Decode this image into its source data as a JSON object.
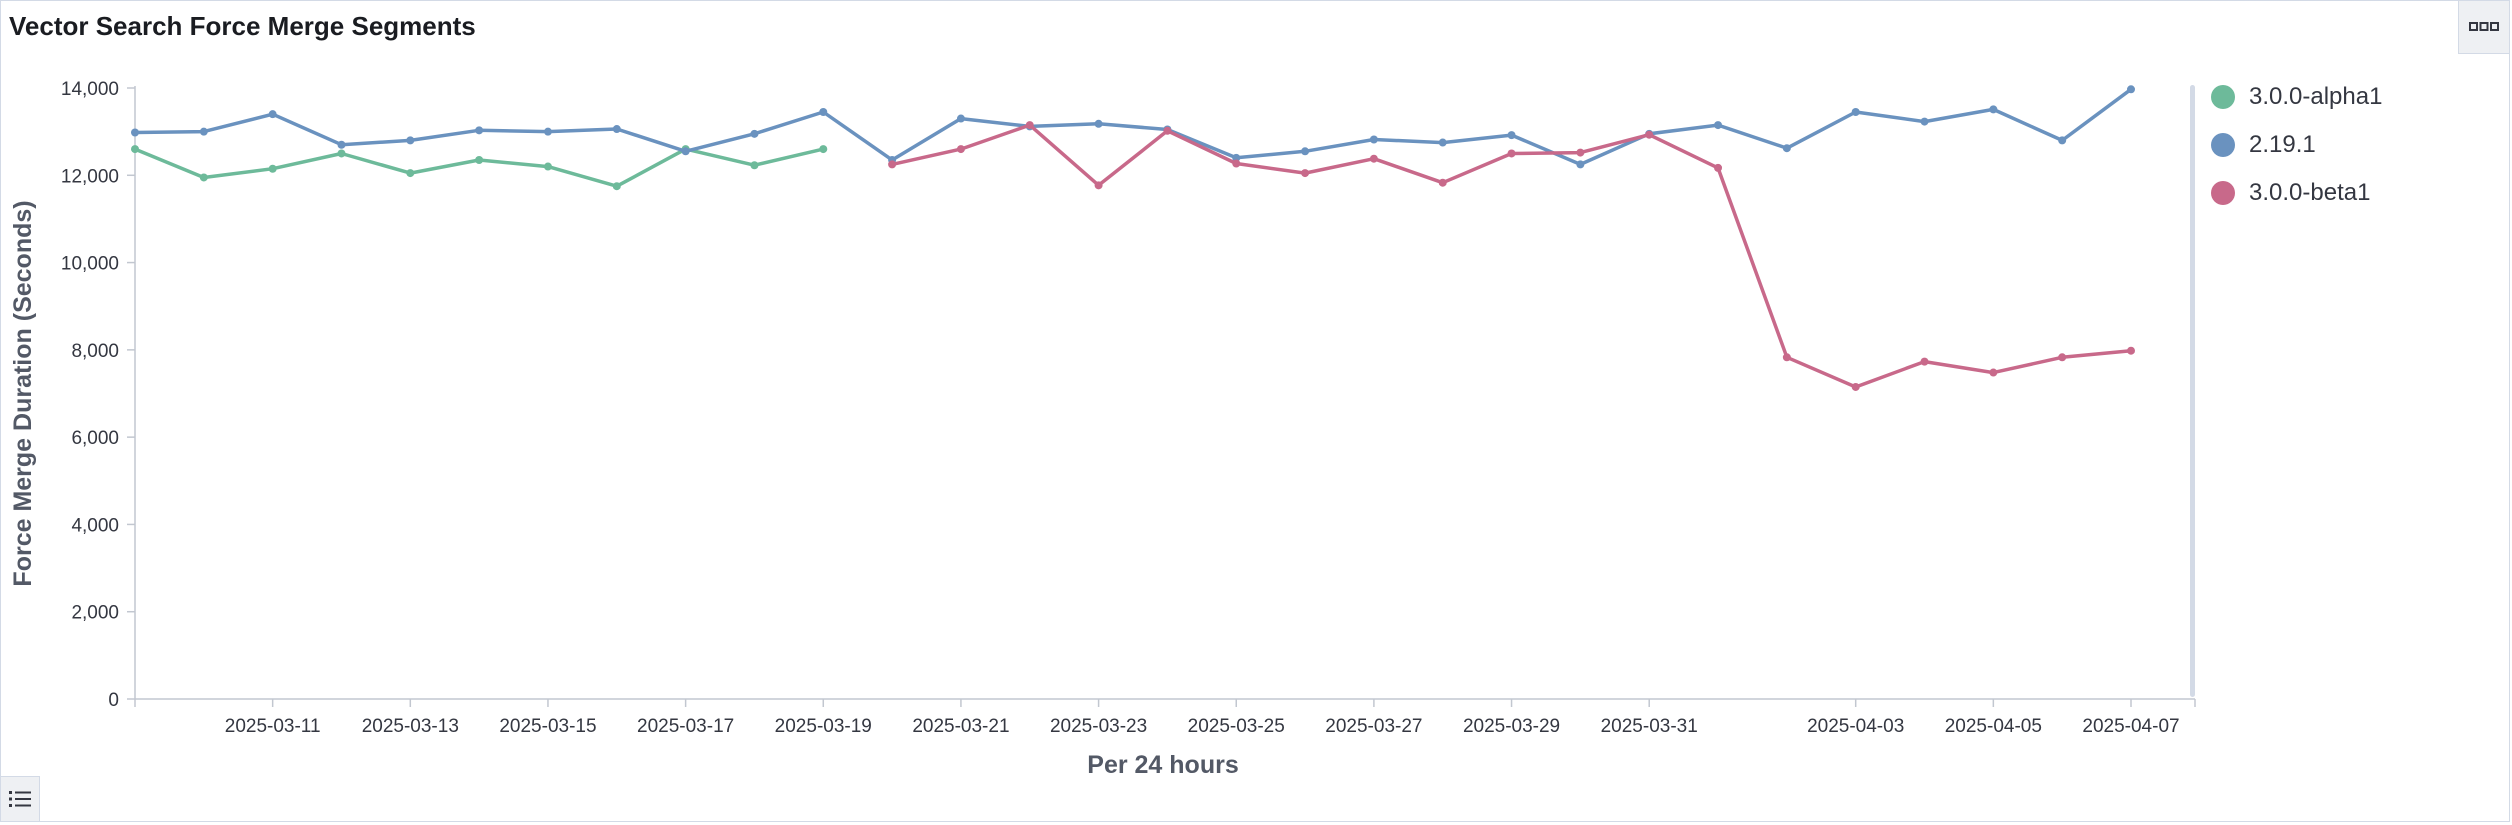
{
  "panel": {
    "title": "Vector Search Force Merge Segments",
    "options_icon": "three-dots-icon",
    "legend_toggle_icon": "list-icon"
  },
  "chart_data": {
    "type": "line",
    "title": "Vector Search Force Merge Segments",
    "xlabel": "Per 24 hours",
    "ylabel": "Force Merge Duration (Seconds)",
    "ylim": [
      0,
      14000
    ],
    "yticks": [
      "0",
      "2,000",
      "4,000",
      "6,000",
      "8,000",
      "10,000",
      "12,000",
      "14,000"
    ],
    "xlim": [
      "2025-03-09",
      "2025-04-07"
    ],
    "xticks": [
      "2025-03-11",
      "2025-03-13",
      "2025-03-15",
      "2025-03-17",
      "2025-03-19",
      "2025-03-21",
      "2025-03-23",
      "2025-03-25",
      "2025-03-27",
      "2025-03-29",
      "2025-03-31",
      "2025-04-03",
      "2025-04-05",
      "2025-04-07"
    ],
    "grid": false,
    "legend_position": "right",
    "series": [
      {
        "name": "3.0.0-alpha1",
        "color": "#6dba9a",
        "x": [
          "2025-03-09",
          "2025-03-10",
          "2025-03-11",
          "2025-03-12",
          "2025-03-13",
          "2025-03-14",
          "2025-03-15",
          "2025-03-16",
          "2025-03-17",
          "2025-03-18",
          "2025-03-19"
        ],
        "values": [
          12600,
          11950,
          12150,
          12500,
          12050,
          12350,
          12200,
          11750,
          12600,
          12230,
          12600
        ]
      },
      {
        "name": "2.19.1",
        "color": "#6a92bf",
        "x": [
          "2025-03-09",
          "2025-03-10",
          "2025-03-11",
          "2025-03-12",
          "2025-03-13",
          "2025-03-14",
          "2025-03-15",
          "2025-03-16",
          "2025-03-17",
          "2025-03-18",
          "2025-03-19",
          "2025-03-20",
          "2025-03-21",
          "2025-03-22",
          "2025-03-23",
          "2025-03-24",
          "2025-03-25",
          "2025-03-26",
          "2025-03-27",
          "2025-03-28",
          "2025-03-29",
          "2025-03-30",
          "2025-03-31",
          "2025-04-01",
          "2025-04-02",
          "2025-04-03",
          "2025-04-04",
          "2025-04-05",
          "2025-04-06",
          "2025-04-07"
        ],
        "values": [
          12980,
          13000,
          13400,
          12700,
          12800,
          13030,
          13000,
          13060,
          12550,
          12950,
          13450,
          12350,
          13300,
          13120,
          13180,
          13050,
          12400,
          12550,
          12820,
          12750,
          12920,
          12250,
          12950,
          13150,
          12620,
          13450,
          13230,
          13510,
          12800,
          13970
        ]
      },
      {
        "name": "3.0.0-beta1",
        "color": "#c8698a",
        "x": [
          "2025-03-20",
          "2025-03-21",
          "2025-03-22",
          "2025-03-23",
          "2025-03-24",
          "2025-03-25",
          "2025-03-26",
          "2025-03-27",
          "2025-03-28",
          "2025-03-29",
          "2025-03-30",
          "2025-03-31",
          "2025-04-01",
          "2025-04-02",
          "2025-04-03",
          "2025-04-04",
          "2025-04-05",
          "2025-04-06",
          "2025-04-07"
        ],
        "values": [
          12250,
          12600,
          13150,
          11770,
          13020,
          12270,
          12050,
          12380,
          11830,
          12500,
          12520,
          12930,
          12170,
          7830,
          7150,
          7730,
          7480,
          7830,
          7980
        ]
      }
    ]
  }
}
